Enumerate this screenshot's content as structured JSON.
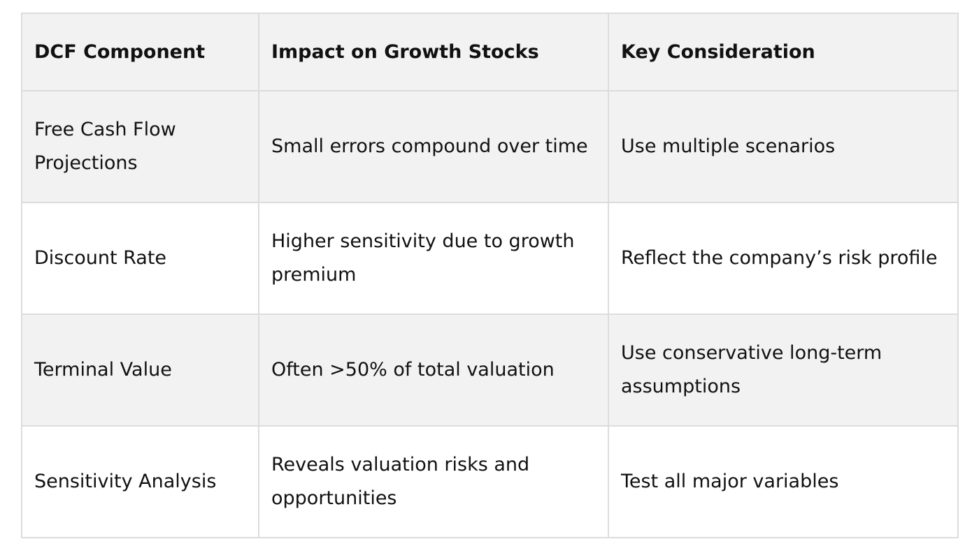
{
  "table": {
    "header": [
      "DCF Component",
      "Impact on Growth Stocks",
      "Key Consideration"
    ],
    "rows": [
      [
        "Free Cash Flow Projections",
        "Small errors compound over time",
        "Use multiple scenarios"
      ],
      [
        "Discount Rate",
        "Higher sensitivity due to growth premium",
        "Reflect the company’s risk profile"
      ],
      [
        "Terminal Value",
        "Often >50% of total valuation",
        "Use conservative long-term assumptions"
      ],
      [
        "Sensitivity Analysis",
        "Reveals valuation risks and opportunities",
        "Test all major variables"
      ]
    ]
  }
}
